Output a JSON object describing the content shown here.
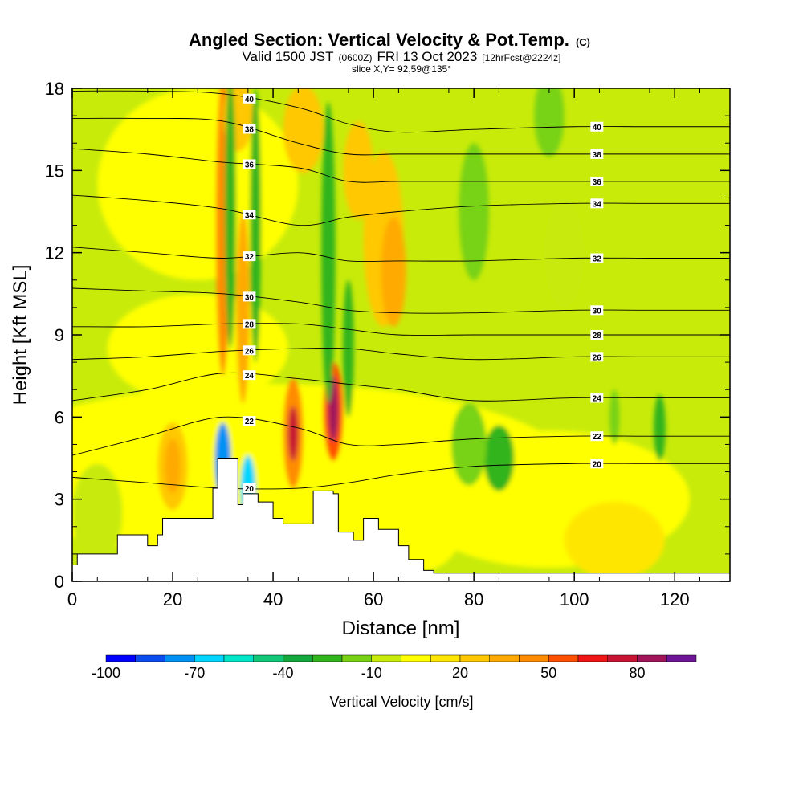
{
  "chart_data": {
    "type": "contour",
    "title": "Angled Section: Vertical Velocity & Pot.Temp.",
    "title_units": "(C)",
    "subtitle_parts": [
      "Valid 1500 JST",
      "(0600Z)",
      "FRI 13 Oct 2023",
      "[12hrFcst@2224z]"
    ],
    "slice_label": "slice X,Y= 92,59@135°",
    "xlabel": "Distance [nm]",
    "ylabel": "Height [Kft MSL]",
    "xlim": [
      0,
      131
    ],
    "ylim": [
      0,
      18
    ],
    "x_ticks": [
      "0",
      "20",
      "40",
      "60",
      "80",
      "100",
      "120"
    ],
    "y_ticks": [
      "0",
      "3",
      "6",
      "9",
      "12",
      "15",
      "18"
    ],
    "colorbar": {
      "label": "Vertical Velocity [cm/s]",
      "tick_labels": [
        "-100",
        "-70",
        "-40",
        "-10",
        "20",
        "50",
        "80"
      ],
      "levels": [
        -100,
        -90,
        -80,
        -70,
        -60,
        -50,
        -40,
        -30,
        -20,
        -10,
        0,
        10,
        20,
        30,
        40,
        50,
        60,
        70,
        80,
        90
      ],
      "colors": [
        "#0000ff",
        "#0a4cf0",
        "#0091f5",
        "#00d6ff",
        "#00e6c8",
        "#10c878",
        "#14a83c",
        "#32b41e",
        "#78d214",
        "#c8eb0a",
        "#ffff00",
        "#ffe600",
        "#ffc800",
        "#ffaa00",
        "#ff8c00",
        "#ff5000",
        "#f01414",
        "#c81432",
        "#a0145a",
        "#6e1496"
      ]
    },
    "background_value_cms": -5,
    "theta_contours": [
      {
        "level": 20,
        "label": "20",
        "heights_kft": [
          3.8,
          3.6,
          3.4,
          3.4,
          3.6,
          3.9,
          4.2,
          4.3,
          4.3,
          4.3
        ]
      },
      {
        "level": 22,
        "label": "22",
        "heights_kft": [
          4.6,
          5.3,
          6.0,
          5.6,
          5.0,
          5.0,
          5.2,
          5.3,
          5.3,
          5.3
        ]
      },
      {
        "level": 24,
        "label": "24",
        "heights_kft": [
          6.6,
          7.0,
          7.6,
          7.4,
          7.2,
          7.0,
          6.6,
          6.7,
          6.7,
          6.7
        ]
      },
      {
        "level": 26,
        "label": "26",
        "heights_kft": [
          8.1,
          8.2,
          8.4,
          8.5,
          8.5,
          8.3,
          8.1,
          8.2,
          8.2,
          8.2
        ]
      },
      {
        "level": 28,
        "label": "28",
        "heights_kft": [
          9.3,
          9.3,
          9.4,
          9.4,
          9.2,
          9.0,
          9.0,
          9.0,
          9.0,
          9.0
        ]
      },
      {
        "level": 30,
        "label": "30",
        "heights_kft": [
          10.7,
          10.6,
          10.5,
          10.2,
          9.9,
          9.8,
          9.8,
          9.9,
          9.9,
          9.9
        ]
      },
      {
        "level": 32,
        "label": "32",
        "heights_kft": [
          12.2,
          12.0,
          11.8,
          12.0,
          11.7,
          11.7,
          11.7,
          11.8,
          11.8,
          11.8
        ]
      },
      {
        "level": 34,
        "label": "34",
        "heights_kft": [
          14.1,
          13.9,
          13.6,
          13.0,
          13.3,
          13.5,
          13.7,
          13.8,
          13.8,
          13.8
        ]
      },
      {
        "level": 36,
        "label": "36",
        "heights_kft": [
          15.8,
          15.6,
          15.3,
          15.1,
          14.6,
          14.6,
          14.6,
          14.6,
          14.6,
          14.6
        ]
      },
      {
        "level": 38,
        "label": "38",
        "heights_kft": [
          16.9,
          16.9,
          16.8,
          16.0,
          15.6,
          15.6,
          15.6,
          15.6,
          15.6,
          15.6
        ]
      },
      {
        "level": 40,
        "label": "40",
        "heights_kft": [
          17.9,
          17.9,
          17.8,
          17.3,
          16.7,
          16.4,
          16.5,
          16.6,
          16.6,
          16.6
        ]
      }
    ],
    "contour_x_nm": [
      0,
      15,
      30,
      45,
      55,
      65,
      80,
      100,
      115,
      131
    ],
    "terrain_kft": [
      0.6,
      1.0,
      1.0,
      1.7,
      1.7,
      1.3,
      1.7,
      2.3,
      2.3,
      3.4,
      4.5,
      4.5,
      2.8,
      3.2,
      2.9,
      2.3,
      2.1,
      2.1,
      2.1,
      3.3,
      3.2,
      1.8,
      1.5,
      2.3,
      1.9,
      1.3,
      0.8,
      0.4,
      0.3,
      0.3,
      0.3,
      0.3,
      0.3,
      0.3
    ],
    "terrain_x_nm": [
      0,
      1,
      5,
      9,
      13,
      15,
      17,
      18,
      25,
      28,
      29,
      31,
      33,
      34,
      37,
      40,
      42,
      44,
      45,
      48,
      52,
      53,
      56,
      58,
      61,
      65,
      67,
      70,
      72,
      80,
      100,
      115,
      125,
      131
    ]
  }
}
